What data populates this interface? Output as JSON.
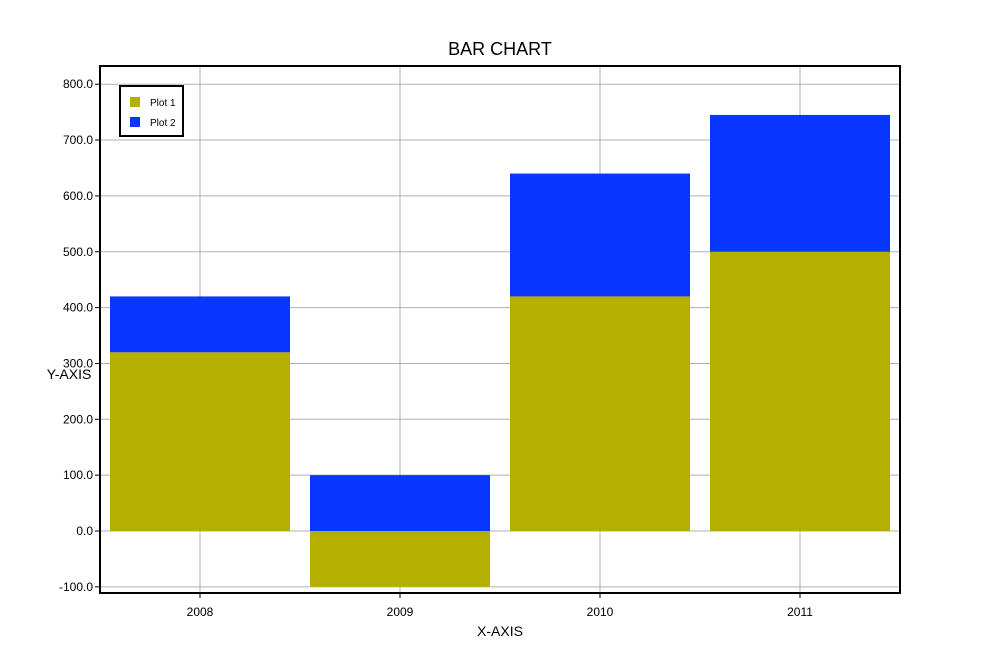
{
  "chart_data": {
    "type": "bar",
    "stacked": true,
    "title": "BAR CHART",
    "xlabel": "X-AXIS",
    "ylabel": "Y-AXIS",
    "categories": [
      "2008",
      "2009",
      "2010",
      "2011"
    ],
    "series": [
      {
        "name": "Plot 1",
        "color": "#b5b000",
        "values": [
          320,
          -100,
          420,
          500
        ]
      },
      {
        "name": "Plot 2",
        "color": "#0a37ff",
        "values": [
          100,
          100,
          220,
          245
        ]
      }
    ],
    "ylim": [
      -110,
      835
    ],
    "yticks": [
      "-100.0",
      "0.0",
      "100.0",
      "200.0",
      "300.0",
      "400.0",
      "500.0",
      "600.0",
      "700.0",
      "800.0"
    ],
    "grid": true,
    "legend": "top-left"
  }
}
